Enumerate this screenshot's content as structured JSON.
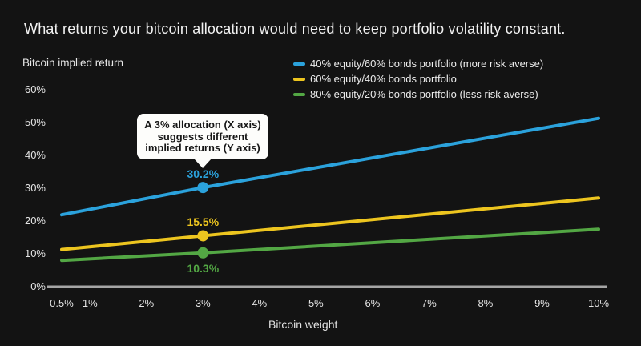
{
  "title": "What returns your bitcoin allocation would need to keep portfolio volatility constant.",
  "colors": {
    "background": "#131313",
    "title_text": "#f2f2f2",
    "axis_text": "#e3e3e3",
    "axis_line": "#a5a5a5",
    "callout_background": "#fdfdfb",
    "callout_text": "#161616",
    "series_blue": "#2ba2dc",
    "series_yellow": "#edc51f",
    "series_green": "#53a744"
  },
  "chart_data": {
    "type": "line",
    "title": "What returns your bitcoin allocation would need to keep portfolio volatility constant.",
    "ylabel": "Bitcoin implied return",
    "xlabel": "Bitcoin weight",
    "xlim": [
      0.5,
      10
    ],
    "ylim": [
      0,
      60
    ],
    "grid": false,
    "legend_position": "top-right",
    "x_ticks": [
      {
        "value": 0.5,
        "label": "0.5%"
      },
      {
        "value": 1,
        "label": "1%"
      },
      {
        "value": 2,
        "label": "2%"
      },
      {
        "value": 3,
        "label": "3%"
      },
      {
        "value": 4,
        "label": "4%"
      },
      {
        "value": 5,
        "label": "5%"
      },
      {
        "value": 6,
        "label": "6%"
      },
      {
        "value": 7,
        "label": "7%"
      },
      {
        "value": 8,
        "label": "8%"
      },
      {
        "value": 9,
        "label": "9%"
      },
      {
        "value": 10,
        "label": "10%"
      }
    ],
    "y_ticks": [
      {
        "value": 0,
        "label": "0%"
      },
      {
        "value": 10,
        "label": "10%"
      },
      {
        "value": 20,
        "label": "20%"
      },
      {
        "value": 30,
        "label": "30%"
      },
      {
        "value": 40,
        "label": "40%"
      },
      {
        "value": 50,
        "label": "50%"
      },
      {
        "value": 60,
        "label": "60%"
      }
    ],
    "series": [
      {
        "name": "40% equity/60% bonds portfolio (more risk averse)",
        "color": "#2ba2dc",
        "points": [
          [
            0.5,
            21.9
          ],
          [
            3,
            30.2
          ],
          [
            10,
            51.3
          ]
        ],
        "marker": {
          "x": 3,
          "y": 30.2,
          "label": "30.2%",
          "label_position": "above"
        }
      },
      {
        "name": "60% equity/40% bonds portfolio",
        "color": "#edc51f",
        "points": [
          [
            0.5,
            11.3
          ],
          [
            3,
            15.5
          ],
          [
            10,
            27.0
          ]
        ],
        "marker": {
          "x": 3,
          "y": 15.5,
          "label": "15.5%",
          "label_position": "above"
        }
      },
      {
        "name": "80% equity/20% bonds portfolio (less risk averse)",
        "color": "#53a744",
        "points": [
          [
            0.5,
            8.0
          ],
          [
            3,
            10.3
          ],
          [
            10,
            17.5
          ]
        ],
        "marker": {
          "x": 3,
          "y": 10.3,
          "label": "10.3%",
          "label_position": "below"
        }
      }
    ],
    "annotation": {
      "text": "A 3% allocation (X axis)\nsuggests different\nimplied returns (Y axis)",
      "target_x": 3
    }
  }
}
